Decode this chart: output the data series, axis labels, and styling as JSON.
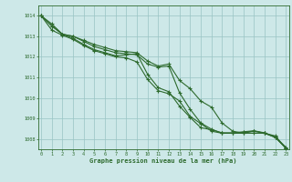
{
  "x": [
    0,
    1,
    2,
    3,
    4,
    5,
    6,
    7,
    8,
    9,
    10,
    11,
    12,
    13,
    14,
    15,
    16,
    17,
    18,
    19,
    20,
    21,
    22,
    23
  ],
  "line1": [
    1014.0,
    1013.6,
    1013.1,
    1012.9,
    1012.6,
    1012.35,
    1012.2,
    1012.05,
    1012.1,
    1012.15,
    1011.15,
    1010.5,
    1010.3,
    1009.6,
    1009.05,
    1008.55,
    1008.45,
    1008.3,
    1008.3,
    1008.35,
    1008.4,
    1008.3,
    1008.1,
    1007.6
  ],
  "line2": [
    1014.0,
    1013.3,
    1013.05,
    1012.85,
    1012.55,
    1012.3,
    1012.15,
    1012.0,
    1011.95,
    1011.75,
    1010.9,
    1010.35,
    1010.2,
    1009.85,
    1009.1,
    1008.75,
    1008.38,
    1008.28,
    1008.28,
    1008.32,
    1008.38,
    1008.28,
    1008.08,
    1007.55
  ],
  "line3": [
    1014.0,
    1013.5,
    1013.1,
    1013.0,
    1012.75,
    1012.5,
    1012.35,
    1012.2,
    1012.15,
    1012.1,
    1011.65,
    1011.5,
    1011.55,
    1010.25,
    1009.45,
    1008.78,
    1008.48,
    1008.28,
    1008.28,
    1008.28,
    1008.38,
    1008.28,
    1008.08,
    1007.55
  ],
  "line4": [
    1014.0,
    1013.5,
    1013.1,
    1013.0,
    1012.8,
    1012.6,
    1012.45,
    1012.3,
    1012.25,
    1012.2,
    1011.8,
    1011.55,
    1011.65,
    1010.85,
    1010.45,
    1009.85,
    1009.55,
    1008.78,
    1008.38,
    1008.28,
    1008.28,
    1008.28,
    1008.15,
    1007.55
  ],
  "line_color": "#2d6a2d",
  "bg_color": "#cde8e8",
  "grid_color": "#99c4c4",
  "xlabel": "Graphe pression niveau de la mer (hPa)",
  "ylim": [
    1007.5,
    1014.5
  ],
  "xlim": [
    -0.3,
    23.3
  ],
  "yticks": [
    1008,
    1009,
    1010,
    1011,
    1012,
    1013,
    1014
  ],
  "xticks": [
    0,
    1,
    2,
    3,
    4,
    5,
    6,
    7,
    8,
    9,
    10,
    11,
    12,
    13,
    14,
    15,
    16,
    17,
    18,
    19,
    20,
    21,
    22,
    23
  ]
}
